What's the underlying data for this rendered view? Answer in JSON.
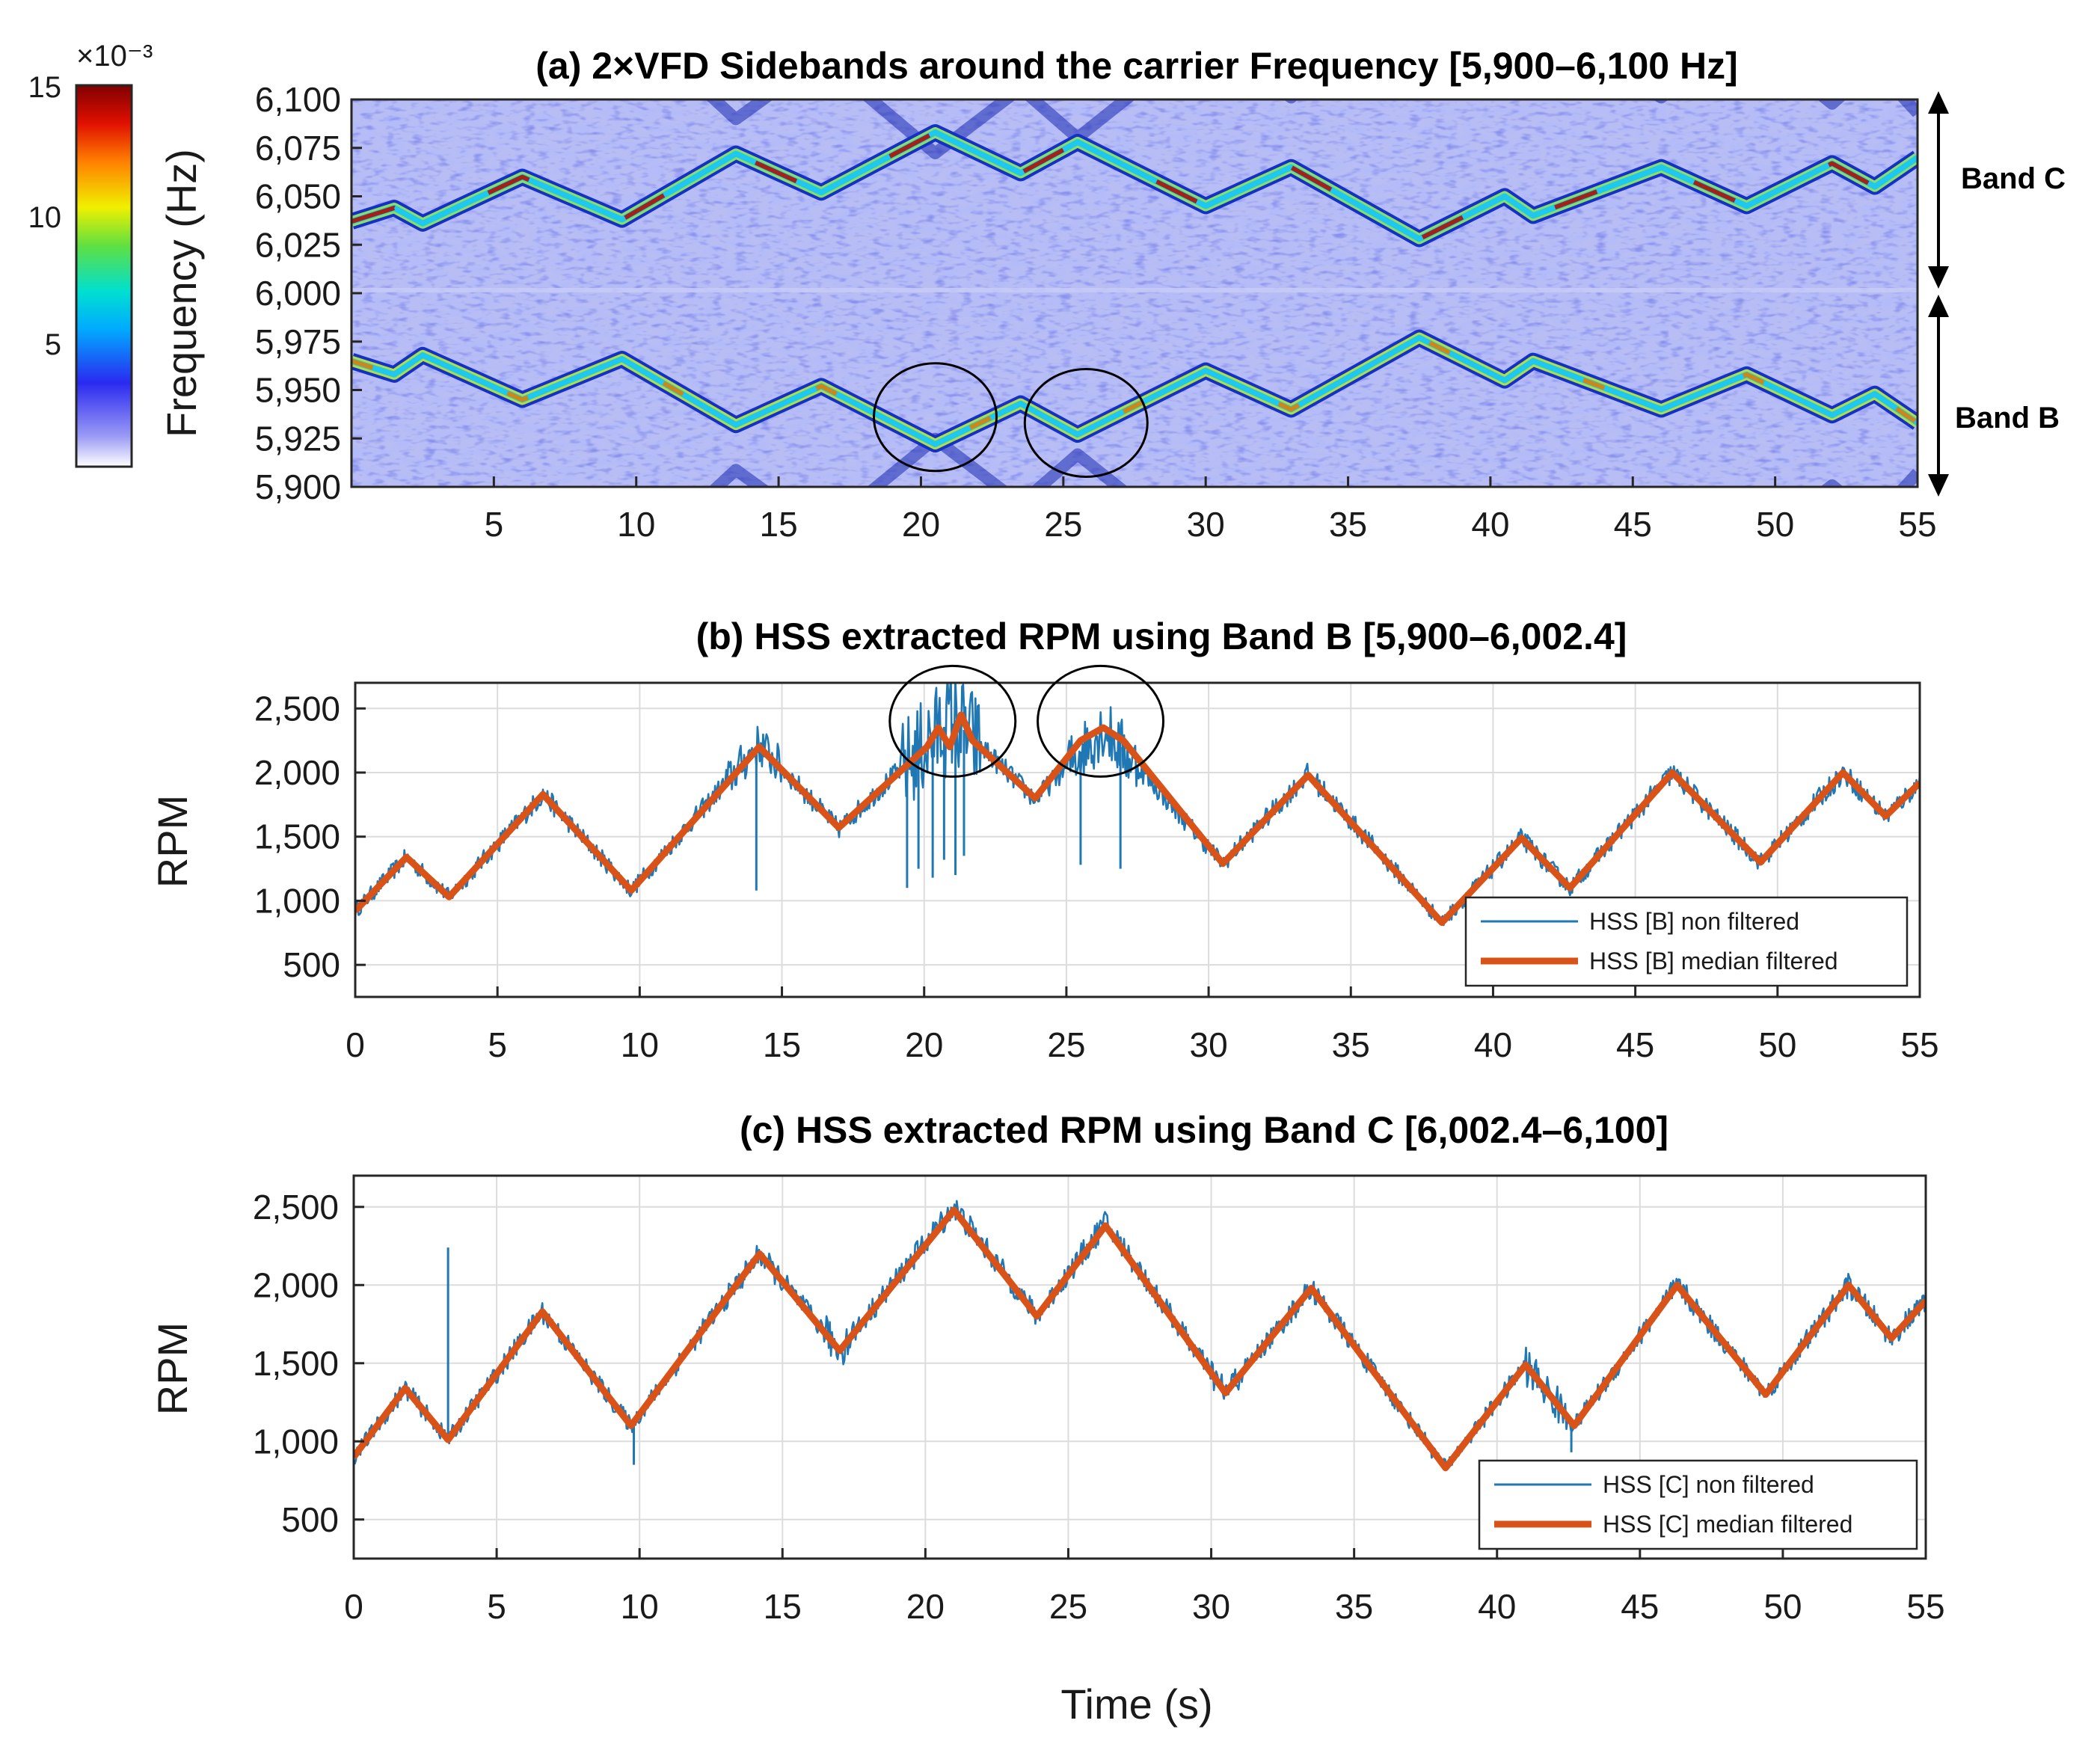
{
  "chart_data": [
    {
      "id": "a",
      "type": "heatmap",
      "title": "(a) 2×VFD Sidebands around the carrier Frequency [5,900–6,100 Hz]",
      "xlabel": "",
      "ylabel": "Frequency (Hz)",
      "xlim": [
        0,
        55
      ],
      "ylim": [
        5900,
        6100
      ],
      "xticks": [
        5,
        10,
        15,
        20,
        25,
        30,
        35,
        40,
        45,
        50,
        55
      ],
      "yticks": [
        5900,
        5925,
        5950,
        5975,
        6000,
        6025,
        6050,
        6075,
        6100
      ],
      "ytick_labels": [
        "5,900",
        "5,925",
        "5,950",
        "5,975",
        "6,000",
        "6,025",
        "6,050",
        "6,075",
        "6,100"
      ],
      "xtick_labels": [
        "5",
        "10",
        "15",
        "20",
        "25",
        "30",
        "35",
        "40",
        "45",
        "50",
        "55"
      ],
      "colorbar": {
        "range": [
          0,
          15
        ],
        "ticks": [
          "5",
          "10",
          "15"
        ],
        "exponent_label": "×10⁻³",
        "colors": [
          "#ffffff",
          "#3a3af0",
          "#00c8ff",
          "#f0f000",
          "#ff6000",
          "#8b0000"
        ]
      },
      "band_labels": [
        "Band C",
        "Band B"
      ],
      "series": [
        {
          "name": "Band C sideband",
          "x": [
            0,
            1.5,
            2.5,
            6,
            9.5,
            13.5,
            16.5,
            20.5,
            23.5,
            25.5,
            30,
            33,
            37.5,
            40.5,
            41.5,
            46,
            49,
            52,
            53.5,
            55
          ],
          "y": [
            6037,
            6044,
            6036,
            6060,
            6038,
            6072,
            6052,
            6083,
            6062,
            6078,
            6045,
            6065,
            6028,
            6050,
            6040,
            6065,
            6045,
            6067,
            6055,
            6070
          ]
        },
        {
          "name": "Band B sideband",
          "x": [
            0,
            1.5,
            2.5,
            6,
            9.5,
            13.5,
            16.5,
            20.5,
            23.5,
            25.5,
            30,
            33,
            37.5,
            40.5,
            41.5,
            46,
            49,
            52,
            53.5,
            55
          ],
          "y": [
            5965,
            5958,
            5968,
            5945,
            5966,
            5932,
            5952,
            5922,
            5943,
            5927,
            5960,
            5940,
            5977,
            5955,
            5965,
            5940,
            5958,
            5937,
            5948,
            5933
          ]
        }
      ],
      "annotations": [
        {
          "x": 20.5,
          "y": 5936,
          "shape": "circle"
        },
        {
          "x": 25.8,
          "y": 5933,
          "shape": "circle"
        }
      ]
    },
    {
      "id": "b",
      "type": "line",
      "title": "(b) HSS extracted RPM using Band B [5,900–6,002.4]",
      "xlabel": "",
      "ylabel": "RPM",
      "xlim": [
        0,
        55
      ],
      "ylim": [
        250,
        2700
      ],
      "xticks": [
        0,
        5,
        10,
        15,
        20,
        25,
        30,
        35,
        40,
        45,
        50,
        55
      ],
      "xtick_labels": [
        "0",
        "5",
        "10",
        "15",
        "20",
        "25",
        "30",
        "35",
        "40",
        "45",
        "50",
        "55"
      ],
      "yticks": [
        500,
        1000,
        1500,
        2000,
        2500
      ],
      "ytick_labels": [
        "500",
        "1,000",
        "1,500",
        "2,000",
        "2,500"
      ],
      "legend_position": "bottom-right",
      "series": [
        {
          "name": "HSS [B] non filtered",
          "color": "#1f77b4",
          "x": [
            0,
            1.8,
            3.3,
            6.6,
            9.7,
            14.2,
            17,
            21,
            23.9,
            26.3,
            30.5,
            33.5,
            38.2,
            41,
            42.7,
            46.3,
            49.4,
            52.3,
            53.8,
            55
          ],
          "y": [
            920,
            1340,
            1030,
            1830,
            1080,
            2220,
            1560,
            2420,
            1790,
            2350,
            1290,
            1990,
            830,
            1490,
            1100,
            2000,
            1300,
            2000,
            1660,
            1920
          ],
          "spikes": [
            {
              "x": 14.1,
              "y": 1080
            },
            {
              "x": 19.4,
              "y": 1100
            },
            {
              "x": 19.8,
              "y": 1250
            },
            {
              "x": 20.3,
              "y": 1180
            },
            {
              "x": 20.7,
              "y": 1320
            },
            {
              "x": 21.1,
              "y": 1200
            },
            {
              "x": 21.4,
              "y": 1350
            },
            {
              "x": 25.5,
              "y": 1280
            },
            {
              "x": 26.9,
              "y": 1250
            }
          ]
        },
        {
          "name": "HSS [B] median filtered",
          "color": "#d95319",
          "x": [
            0,
            1.8,
            3.3,
            6.6,
            9.7,
            14.2,
            17,
            20.1,
            20.5,
            20.9,
            21.3,
            21.7,
            23.9,
            25.5,
            26.3,
            27,
            30.5,
            33.5,
            38.2,
            41,
            42.7,
            46.3,
            49.4,
            52.3,
            53.8,
            55
          ],
          "y": [
            920,
            1340,
            1030,
            1830,
            1080,
            2200,
            1570,
            2200,
            2350,
            2200,
            2450,
            2250,
            1800,
            2250,
            2350,
            2250,
            1290,
            1980,
            830,
            1490,
            1100,
            2000,
            1300,
            2000,
            1660,
            1920
          ]
        }
      ],
      "annotations": [
        {
          "x": 21,
          "y": 2400,
          "shape": "circle"
        },
        {
          "x": 26.2,
          "y": 2400,
          "shape": "circle"
        }
      ]
    },
    {
      "id": "c",
      "type": "line",
      "title": "(c) HSS extracted RPM using Band C [6,002.4–6,100]",
      "xlabel": "Time (s)",
      "ylabel": "RPM",
      "xlim": [
        0,
        55
      ],
      "ylim": [
        250,
        2700
      ],
      "xticks": [
        0,
        5,
        10,
        15,
        20,
        25,
        30,
        35,
        40,
        45,
        50,
        55
      ],
      "xtick_labels": [
        "0",
        "5",
        "10",
        "15",
        "20",
        "25",
        "30",
        "35",
        "40",
        "45",
        "50",
        "55"
      ],
      "yticks": [
        500,
        1000,
        1500,
        2000,
        2500
      ],
      "ytick_labels": [
        "500",
        "1,000",
        "1,500",
        "2,000",
        "2,500"
      ],
      "legend_position": "bottom-right",
      "series": [
        {
          "name": "HSS [C] non filtered",
          "color": "#1f77b4",
          "x": [
            0,
            1.8,
            3.3,
            6.6,
            9.7,
            14.2,
            17,
            21,
            23.9,
            26.3,
            30.5,
            33.5,
            38.2,
            41,
            42.7,
            46.3,
            49.4,
            52.3,
            53.8,
            55
          ],
          "y": [
            900,
            1340,
            1010,
            1830,
            1100,
            2200,
            1580,
            2500,
            1800,
            2400,
            1310,
            1980,
            830,
            1490,
            1100,
            2000,
            1300,
            2000,
            1660,
            1900
          ],
          "spikes": [
            {
              "x": 3.3,
              "y": 2240
            },
            {
              "x": 9.8,
              "y": 850
            },
            {
              "x": 42.6,
              "y": 930
            },
            {
              "x": 41.8,
              "y": 1350
            }
          ]
        },
        {
          "name": "HSS [C] median filtered",
          "color": "#d95319",
          "x": [
            0,
            1.8,
            3.3,
            6.6,
            9.7,
            14.2,
            17,
            21,
            23.9,
            26.3,
            30.5,
            33.5,
            38.2,
            41,
            42.7,
            46.3,
            49.4,
            52.3,
            53.8,
            55
          ],
          "y": [
            900,
            1340,
            1010,
            1830,
            1100,
            2200,
            1580,
            2480,
            1800,
            2380,
            1310,
            1980,
            830,
            1490,
            1100,
            2000,
            1300,
            2000,
            1660,
            1900
          ]
        }
      ]
    }
  ]
}
